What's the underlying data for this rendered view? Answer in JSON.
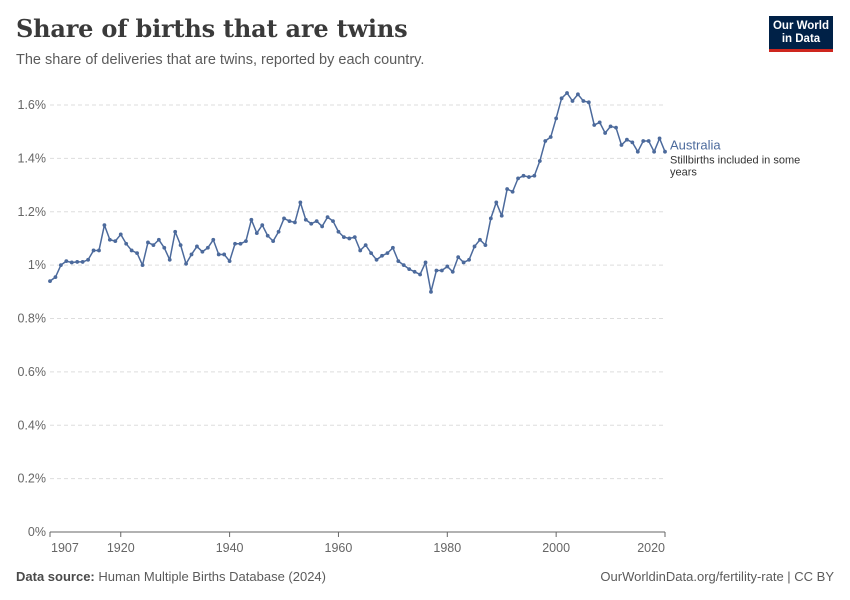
{
  "header": {
    "title": "Share of births that are twins",
    "subtitle": "The share of deliveries that are twins, reported by each country.",
    "logo_line1": "Our World",
    "logo_line2": "in Data"
  },
  "footer": {
    "source_label": "Data source:",
    "source_value": "Human Multiple Births Database (2024)",
    "url": "OurWorldinData.org/fertility-rate | CC BY"
  },
  "colors": {
    "series": "#4c6a9c",
    "grid": "#dddddd",
    "axis": "#666666",
    "text": "#666666"
  },
  "chart_data": {
    "type": "line",
    "title": "Share of births that are twins",
    "xlabel": "",
    "ylabel": "",
    "xlim": [
      1907,
      2020
    ],
    "ylim": [
      0,
      1.6
    ],
    "x_ticks": [
      {
        "value": 1907,
        "label": "1907"
      },
      {
        "value": 1920,
        "label": "1920"
      },
      {
        "value": 1940,
        "label": "1940"
      },
      {
        "value": 1960,
        "label": "1960"
      },
      {
        "value": 1980,
        "label": "1980"
      },
      {
        "value": 2000,
        "label": "2000"
      },
      {
        "value": 2020,
        "label": "2020"
      }
    ],
    "y_ticks": [
      {
        "value": 0,
        "label": "0%"
      },
      {
        "value": 0.2,
        "label": "0.2%"
      },
      {
        "value": 0.4,
        "label": "0.4%"
      },
      {
        "value": 0.6,
        "label": "0.6%"
      },
      {
        "value": 0.8,
        "label": "0.8%"
      },
      {
        "value": 1.0,
        "label": "1%"
      },
      {
        "value": 1.2,
        "label": "1.2%"
      },
      {
        "value": 1.4,
        "label": "1.4%"
      },
      {
        "value": 1.6,
        "label": "1.6%"
      }
    ],
    "grid": true,
    "series": [
      {
        "name": "Australia",
        "note": "Stillbirths included in some years",
        "x": [
          1907,
          1908,
          1909,
          1910,
          1911,
          1912,
          1913,
          1914,
          1915,
          1916,
          1917,
          1918,
          1919,
          1920,
          1921,
          1922,
          1923,
          1924,
          1925,
          1926,
          1927,
          1928,
          1929,
          1930,
          1931,
          1932,
          1933,
          1934,
          1935,
          1936,
          1937,
          1938,
          1939,
          1940,
          1941,
          1942,
          1943,
          1944,
          1945,
          1946,
          1947,
          1948,
          1949,
          1950,
          1951,
          1952,
          1953,
          1954,
          1955,
          1956,
          1957,
          1958,
          1959,
          1960,
          1961,
          1962,
          1963,
          1964,
          1965,
          1966,
          1967,
          1968,
          1969,
          1970,
          1971,
          1972,
          1973,
          1974,
          1975,
          1976,
          1977,
          1978,
          1979,
          1980,
          1981,
          1982,
          1983,
          1984,
          1985,
          1986,
          1987,
          1988,
          1989,
          1990,
          1991,
          1992,
          1993,
          1994,
          1995,
          1996,
          1997,
          1998,
          1999,
          2000,
          2001,
          2002,
          2003,
          2004,
          2005,
          2006,
          2007,
          2008,
          2009,
          2010,
          2011,
          2012,
          2013,
          2014,
          2015,
          2016,
          2017,
          2018,
          2019,
          2020
        ],
        "y": [
          0.94,
          0.955,
          1.0,
          1.015,
          1.01,
          1.012,
          1.012,
          1.02,
          1.055,
          1.055,
          1.15,
          1.095,
          1.09,
          1.115,
          1.08,
          1.055,
          1.045,
          1.0,
          1.085,
          1.075,
          1.095,
          1.065,
          1.02,
          1.125,
          1.075,
          1.005,
          1.04,
          1.07,
          1.05,
          1.065,
          1.095,
          1.04,
          1.04,
          1.015,
          1.08,
          1.08,
          1.09,
          1.17,
          1.12,
          1.15,
          1.11,
          1.09,
          1.125,
          1.175,
          1.165,
          1.16,
          1.235,
          1.17,
          1.155,
          1.165,
          1.145,
          1.18,
          1.165,
          1.125,
          1.105,
          1.1,
          1.105,
          1.055,
          1.075,
          1.045,
          1.02,
          1.035,
          1.045,
          1.065,
          1.015,
          1.0,
          0.985,
          0.975,
          0.965,
          1.01,
          0.9,
          0.98,
          0.98,
          0.995,
          0.975,
          1.03,
          1.01,
          1.02,
          1.07,
          1.095,
          1.075,
          1.175,
          1.235,
          1.185,
          1.285,
          1.275,
          1.325,
          1.335,
          1.33,
          1.335,
          1.39,
          1.465,
          1.48,
          1.55,
          1.625,
          1.645,
          1.615,
          1.64,
          1.615,
          1.61,
          1.525,
          1.535,
          1.495,
          1.52,
          1.515,
          1.45,
          1.47,
          1.46,
          1.425,
          1.465,
          1.465,
          1.425,
          1.475,
          1.425
        ]
      }
    ],
    "legend": "right-end-label"
  }
}
